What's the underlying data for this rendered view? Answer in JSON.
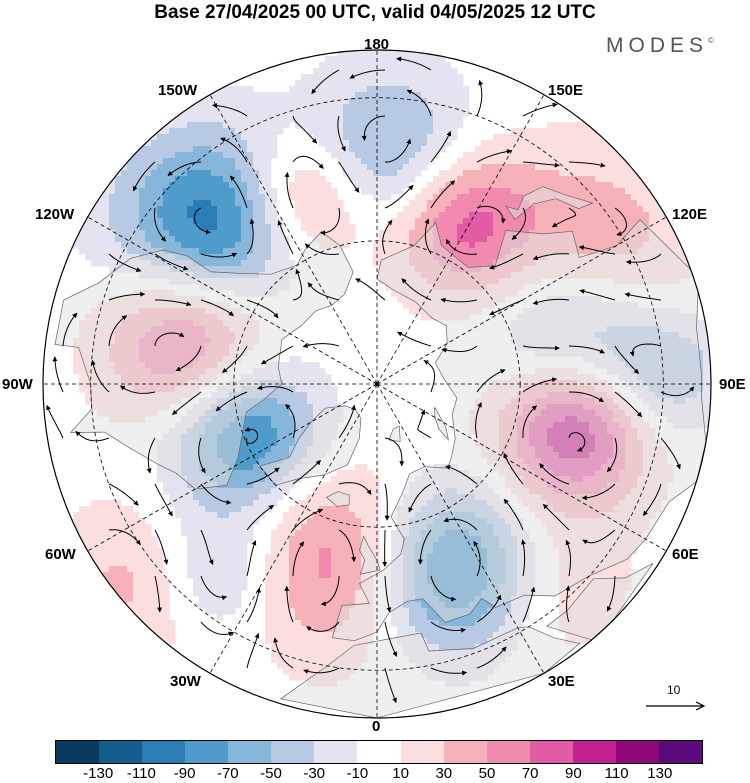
{
  "title": "Base 27/04/2025 00 UTC, valid 04/05/2025 12 UTC",
  "brand": "MODES",
  "brand_mark": "©",
  "longitude_labels": {
    "top": "180",
    "bottom": "0",
    "left": "90W",
    "right": "90E",
    "upper_left_1": "150W",
    "upper_left_2": "120W",
    "upper_right_1": "150E",
    "upper_right_2": "120E",
    "lower_left_1": "60W",
    "lower_left_2": "30W",
    "lower_right_1": "60E",
    "lower_right_2": "30E"
  },
  "reference_vector": {
    "value": "10"
  },
  "colorbar": {
    "colors": [
      "#0b3a5e",
      "#125f8f",
      "#2b7cb7",
      "#4f9ccc",
      "#86b6da",
      "#b7c9e3",
      "#e4e4f0",
      "#ffffff",
      "#fbdedd",
      "#f7b2b9",
      "#f28ab0",
      "#e25ca4",
      "#c4208f",
      "#900777",
      "#5a0a7a"
    ],
    "labels": [
      "-130",
      "-110",
      "-90",
      "-70",
      "-50",
      "-30",
      "-10",
      "10",
      "30",
      "50",
      "70",
      "90",
      "110",
      "130"
    ]
  },
  "map_features": {
    "anomaly_centers": [
      {
        "lon": -160,
        "lat": 48,
        "value": 75,
        "spread": 10
      },
      {
        "lon": -175,
        "lat": 45,
        "value": -35,
        "spread": 12
      },
      {
        "lon": 175,
        "lat": 40,
        "value": -40,
        "spread": 12
      },
      {
        "lon": 152,
        "lat": 52,
        "value": 80,
        "spread": 11
      },
      {
        "lon": -142,
        "lat": 35,
        "value": -30,
        "spread": 12
      },
      {
        "lon": 128,
        "lat": 35,
        "value": 30,
        "spread": 13
      },
      {
        "lon": -133,
        "lat": 45,
        "value": -80,
        "spread": 12
      },
      {
        "lon": -125,
        "lat": 30,
        "value": -20,
        "spread": 12
      },
      {
        "lon": -102,
        "lat": 50,
        "value": 90,
        "spread": 12
      },
      {
        "lon": -70,
        "lat": 60,
        "value": -105,
        "spread": 11
      },
      {
        "lon": -50,
        "lat": 25,
        "value": 40,
        "spread": 12
      },
      {
        "lon": -40,
        "lat": 38,
        "value": -50,
        "spread": 10
      },
      {
        "lon": -14,
        "lat": 52,
        "value": 65,
        "spread": 14
      },
      {
        "lon": 23,
        "lat": 48,
        "value": -110,
        "spread": 12
      },
      {
        "lon": 40,
        "lat": 35,
        "value": 30,
        "spread": 12
      },
      {
        "lon": 78,
        "lat": 48,
        "value": 125,
        "spread": 11
      },
      {
        "lon": 100,
        "lat": 48,
        "value": -65,
        "spread": 12
      },
      {
        "lon": 92,
        "lat": 30,
        "value": -50,
        "spread": 9
      },
      {
        "lon": 115,
        "lat": 30,
        "value": 20,
        "spread": 12
      }
    ]
  }
}
